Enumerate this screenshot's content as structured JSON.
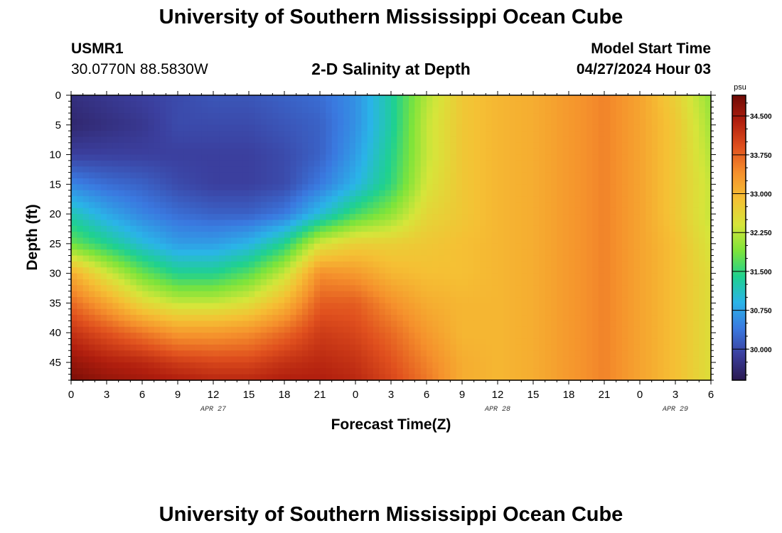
{
  "page": {
    "title": "University of Southern Mississippi Ocean Cube",
    "footer_title": "University of Southern Mississippi Ocean Cube"
  },
  "header": {
    "station_id": "USMR1",
    "coordinates": "30.0770N  88.5830W",
    "chart_title": "2-D Salinity at Depth",
    "model_start_label": "Model Start Time",
    "model_start_value": "04/27/2024 Hour 03"
  },
  "chart_data": {
    "type": "heatmap",
    "title": "2-D Salinity at Depth",
    "xlabel": "Forecast Time(Z)",
    "ylabel": "Depth (ft)",
    "x_hours_range": [
      0,
      54
    ],
    "x_ticks": [
      {
        "hour": 0,
        "label": "0"
      },
      {
        "hour": 3,
        "label": "3"
      },
      {
        "hour": 6,
        "label": "6"
      },
      {
        "hour": 9,
        "label": "9"
      },
      {
        "hour": 12,
        "label": "12"
      },
      {
        "hour": 15,
        "label": "15"
      },
      {
        "hour": 18,
        "label": "18"
      },
      {
        "hour": 21,
        "label": "21"
      },
      {
        "hour": 24,
        "label": "0"
      },
      {
        "hour": 27,
        "label": "3"
      },
      {
        "hour": 30,
        "label": "6"
      },
      {
        "hour": 33,
        "label": "9"
      },
      {
        "hour": 36,
        "label": "12"
      },
      {
        "hour": 39,
        "label": "15"
      },
      {
        "hour": 42,
        "label": "18"
      },
      {
        "hour": 45,
        "label": "21"
      },
      {
        "hour": 48,
        "label": "0"
      },
      {
        "hour": 51,
        "label": "3"
      },
      {
        "hour": 54,
        "label": "6"
      }
    ],
    "date_labels": [
      {
        "hour": 12,
        "label": "APR 27"
      },
      {
        "hour": 36,
        "label": "APR 28"
      },
      {
        "hour": 51,
        "label": "APR 29"
      }
    ],
    "ylim": [
      0,
      48
    ],
    "y_ticks": [
      0,
      5,
      10,
      15,
      20,
      25,
      30,
      35,
      40,
      45
    ],
    "colorbar": {
      "unit": "psu",
      "min": 29.4,
      "max": 34.9,
      "ticks": [
        "30.000",
        "30.750",
        "31.500",
        "32.250",
        "33.000",
        "33.750",
        "34.500"
      ],
      "colormap": [
        "#2a1850",
        "#3b3f9e",
        "#3a79e0",
        "#2ab4e8",
        "#1fd18f",
        "#7ee43a",
        "#d6e53a",
        "#f5c034",
        "#f5902c",
        "#e0501e",
        "#b01e0e",
        "#6e0a05"
      ]
    },
    "salinity_grid": {
      "hours": [
        0,
        3,
        6,
        9,
        12,
        15,
        18,
        21,
        24,
        27,
        30,
        33,
        36,
        39,
        42,
        45,
        48,
        51,
        54
      ],
      "depths": [
        0,
        5,
        10,
        15,
        20,
        25,
        30,
        35,
        40,
        45,
        48
      ],
      "values": [
        [
          29.7,
          29.8,
          29.9,
          30.0,
          30.1,
          30.1,
          30.2,
          30.3,
          30.6,
          31.3,
          32.2,
          32.8,
          33.0,
          33.1,
          33.3,
          33.5,
          33.2,
          32.7,
          32.0
        ],
        [
          29.6,
          29.7,
          29.8,
          30.0,
          30.0,
          30.0,
          30.1,
          30.2,
          30.6,
          31.3,
          32.3,
          32.8,
          33.0,
          33.1,
          33.3,
          33.5,
          33.2,
          32.8,
          32.1
        ],
        [
          29.9,
          29.9,
          29.9,
          29.9,
          29.9,
          29.9,
          30.0,
          30.2,
          30.7,
          31.4,
          32.3,
          32.8,
          33.0,
          33.1,
          33.3,
          33.5,
          33.2,
          32.8,
          32.2
        ],
        [
          30.5,
          30.3,
          30.2,
          30.0,
          29.9,
          29.9,
          30.0,
          30.4,
          30.9,
          31.5,
          32.4,
          32.8,
          33.0,
          33.1,
          33.3,
          33.5,
          33.2,
          32.8,
          32.3
        ],
        [
          31.2,
          30.8,
          30.5,
          30.3,
          30.2,
          30.2,
          30.4,
          31.0,
          31.6,
          32.0,
          32.6,
          32.8,
          33.0,
          33.1,
          33.3,
          33.5,
          33.2,
          32.8,
          32.3
        ],
        [
          31.8,
          31.4,
          31.0,
          30.7,
          30.7,
          30.9,
          31.4,
          32.4,
          32.7,
          32.7,
          32.8,
          32.9,
          33.0,
          33.1,
          33.3,
          33.5,
          33.2,
          32.9,
          32.4
        ],
        [
          33.1,
          32.4,
          31.8,
          31.4,
          31.4,
          31.7,
          32.3,
          33.4,
          33.3,
          33.0,
          32.9,
          32.9,
          33.0,
          33.1,
          33.3,
          33.5,
          33.2,
          32.9,
          32.5
        ],
        [
          33.7,
          33.2,
          32.6,
          32.3,
          32.3,
          32.5,
          33.0,
          33.8,
          33.8,
          33.4,
          33.1,
          33.0,
          33.0,
          33.1,
          33.3,
          33.5,
          33.2,
          32.9,
          32.5
        ],
        [
          34.2,
          33.9,
          33.6,
          33.3,
          33.3,
          33.4,
          33.7,
          34.1,
          34.0,
          33.7,
          33.3,
          33.0,
          33.0,
          33.1,
          33.3,
          33.5,
          33.2,
          32.9,
          32.5
        ],
        [
          34.6,
          34.4,
          34.3,
          34.1,
          34.0,
          34.0,
          34.2,
          34.3,
          34.2,
          33.9,
          33.5,
          33.1,
          33.0,
          33.1,
          33.3,
          33.5,
          33.2,
          32.9,
          32.5
        ],
        [
          34.8,
          34.6,
          34.5,
          34.4,
          34.3,
          34.3,
          34.4,
          34.4,
          34.3,
          34.0,
          33.6,
          33.1,
          33.0,
          33.1,
          33.3,
          33.5,
          33.2,
          32.9,
          32.5
        ]
      ]
    }
  }
}
